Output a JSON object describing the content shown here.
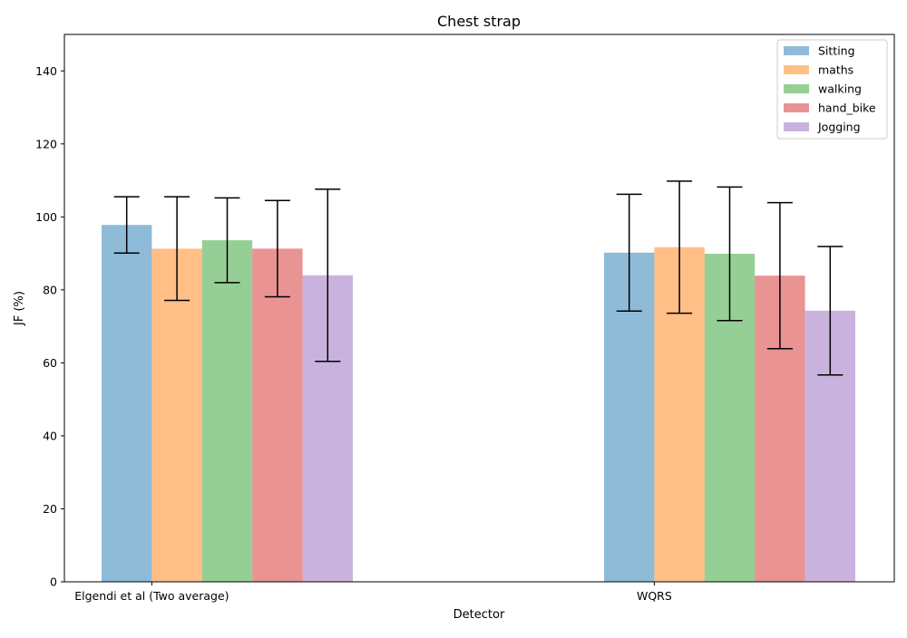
{
  "chart_data": {
    "type": "bar",
    "title": "Chest strap",
    "xlabel": "Detector",
    "ylabel": "JF (%)",
    "ylim": [
      0,
      150
    ],
    "yticks": [
      0,
      20,
      40,
      60,
      80,
      100,
      120,
      140
    ],
    "grid": false,
    "legend_position": "top-right",
    "categories": [
      "Elgendi et al (Two average)",
      "WQRS"
    ],
    "series": [
      {
        "name": "Sitting",
        "color": "#1f77b4",
        "values": [
          97.8,
          90.2
        ],
        "error": [
          7.7,
          16.0
        ]
      },
      {
        "name": "maths",
        "color": "#ff7f0e",
        "values": [
          91.3,
          91.7
        ],
        "error": [
          14.2,
          18.1
        ]
      },
      {
        "name": "walking",
        "color": "#2ca02c",
        "values": [
          93.6,
          89.9
        ],
        "error": [
          11.6,
          18.3
        ]
      },
      {
        "name": "hand_bike",
        "color": "#d62728",
        "values": [
          91.3,
          83.9
        ],
        "error": [
          13.2,
          20.0
        ]
      },
      {
        "name": "Jogging",
        "color": "#9467bd",
        "values": [
          84.0,
          74.3
        ],
        "error": [
          23.6,
          17.6
        ]
      }
    ]
  }
}
